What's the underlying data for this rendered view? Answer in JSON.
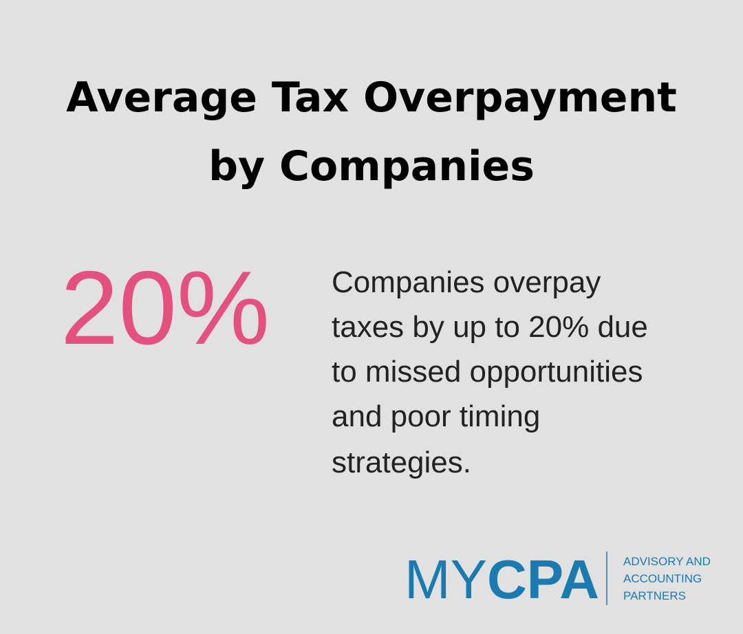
{
  "header": {
    "title_lines": [
      "Average Tax Overpayment",
      "by Companies"
    ]
  },
  "stat": "20%",
  "description_lines": [
    "Companies overpay",
    "taxes by up to 20% due",
    "to missed opportunities",
    "and poor timing",
    "strategies."
  ],
  "logo": {
    "brand_light": "MY",
    "brand_bold": "CPA",
    "tagline_lines": [
      "ADVISORY AND",
      "ACCOUNTING",
      "PARTNERS"
    ]
  }
}
